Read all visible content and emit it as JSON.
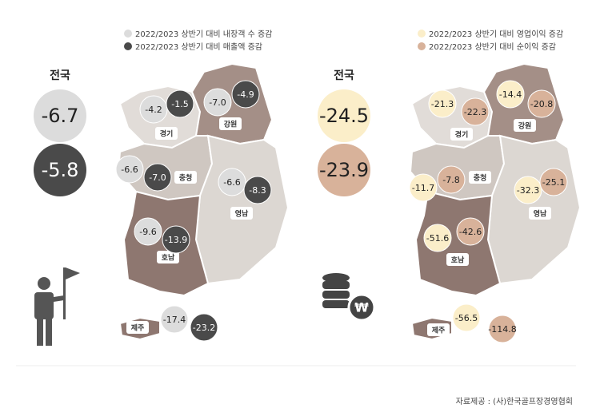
{
  "left": {
    "legend": [
      "2022/2023 상반기 대비 내장객 수 증감",
      "2022/2023 상반기 대비 매출액 증감"
    ],
    "national": {
      "label": "전국",
      "values": [
        "-6.7",
        "-5.8"
      ]
    },
    "regions": [
      {
        "name": "경기",
        "values": [
          "-4.2",
          "-1.5"
        ]
      },
      {
        "name": "강원",
        "values": [
          "-7.0",
          "-4.9"
        ]
      },
      {
        "name": "충청",
        "values": [
          "-6.6",
          "-7.0"
        ]
      },
      {
        "name": "영남",
        "values": [
          "-6.6",
          "-8.3"
        ]
      },
      {
        "name": "호남",
        "values": [
          "-9.6",
          "-13.9"
        ]
      },
      {
        "name": "제주",
        "values": [
          "-17.4",
          "-23.2"
        ]
      }
    ]
  },
  "right": {
    "legend": [
      "2022/2023 상반기 대비 영업이익 증감",
      "2022/2023 상반기 대비 순이익 증감"
    ],
    "national": {
      "label": "전국",
      "values": [
        "-24.5",
        "-23.9"
      ]
    },
    "regions": [
      {
        "name": "경기",
        "values": [
          "-21.3",
          "-22.3"
        ]
      },
      {
        "name": "강원",
        "values": [
          "-14.4",
          "-20.8"
        ]
      },
      {
        "name": "충청",
        "values": [
          "-11.7",
          "-7.8"
        ]
      },
      {
        "name": "영남",
        "values": [
          "-32.3",
          "-25.1"
        ]
      },
      {
        "name": "호남",
        "values": [
          "-51.6",
          "-42.6"
        ]
      },
      {
        "name": "제주",
        "values": [
          "-56.5",
          "-114.8"
        ]
      }
    ]
  },
  "source": "자료제공 : (사)한국골프장경영협회"
}
